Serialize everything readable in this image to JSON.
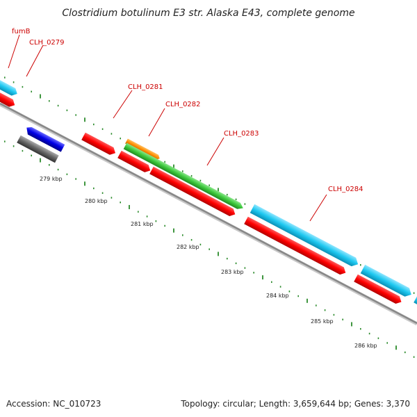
{
  "title": "Clostridium botulinum E3 str. Alaska E43, complete genome",
  "footer": {
    "accession": "Accession: NC_010723",
    "summary": "Topology: circular; Length: 3,659,644 bp; Genes: 3,370"
  },
  "gene_labels": [
    "fumB",
    "CLH_0279",
    "CLH_0281",
    "CLH_0282",
    "CLH_0283",
    "CLH_0284"
  ],
  "tick_labels": [
    "279 kbp",
    "280 kbp",
    "281 kbp",
    "282 kbp",
    "283 kbp",
    "284 kbp",
    "285 kbp",
    "286 kbp"
  ],
  "colors": {
    "cds_red": "#ff0000",
    "cds_cyan": "#1ec8f0",
    "cds_green": "#3cc83c",
    "cds_orange": "#ff8c00",
    "cds_blue": "#0000e6",
    "cds_gray": "#666666",
    "backbone": "#888888",
    "tick_green": "#2a8a2a",
    "label_red": "#cc0000"
  }
}
